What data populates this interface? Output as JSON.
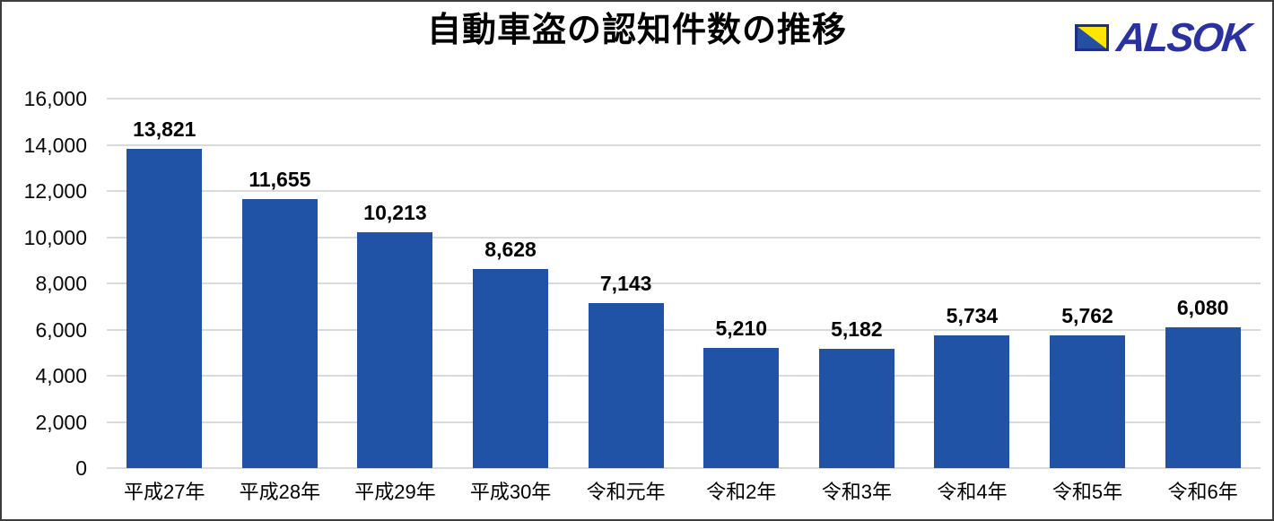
{
  "title": "自動車盗の認知件数の推移",
  "logo": {
    "text": "ALSOK",
    "text_color": "#2a31a0",
    "mark_blue": "#2450a4",
    "mark_yellow": "#ffe600",
    "mark_border": "#1d2f86"
  },
  "colors": {
    "bar": "#2053a5",
    "gridline": "#dadada",
    "text": "#000000",
    "frame_border": "#3d3d3d",
    "background": "#ffffff"
  },
  "chart_data": {
    "type": "bar",
    "title": "自動車盗の認知件数の推移",
    "categories": [
      "平成27年",
      "平成28年",
      "平成29年",
      "平成30年",
      "令和元年",
      "令和2年",
      "令和3年",
      "令和4年",
      "令和5年",
      "令和6年"
    ],
    "values": [
      13821,
      11655,
      10213,
      8628,
      7143,
      5210,
      5182,
      5734,
      5762,
      6080
    ],
    "value_labels": [
      "13,821",
      "11,655",
      "10,213",
      "8,628",
      "7,143",
      "5,210",
      "5,182",
      "5,734",
      "5,762",
      "6,080"
    ],
    "xlabel": "",
    "ylabel": "",
    "ylim": [
      0,
      16000
    ],
    "y_tick_interval": 2000,
    "y_ticks": [
      {
        "value": 0,
        "label": "0"
      },
      {
        "value": 2000,
        "label": "2,000"
      },
      {
        "value": 4000,
        "label": "4,000"
      },
      {
        "value": 6000,
        "label": "6,000"
      },
      {
        "value": 8000,
        "label": "8,000"
      },
      {
        "value": 10000,
        "label": "10,000"
      },
      {
        "value": 12000,
        "label": "12,000"
      },
      {
        "value": 14000,
        "label": "14,000"
      },
      {
        "value": 16000,
        "label": "16,000"
      }
    ],
    "grid": true,
    "legend": false,
    "bar_color": "#2053a5"
  }
}
